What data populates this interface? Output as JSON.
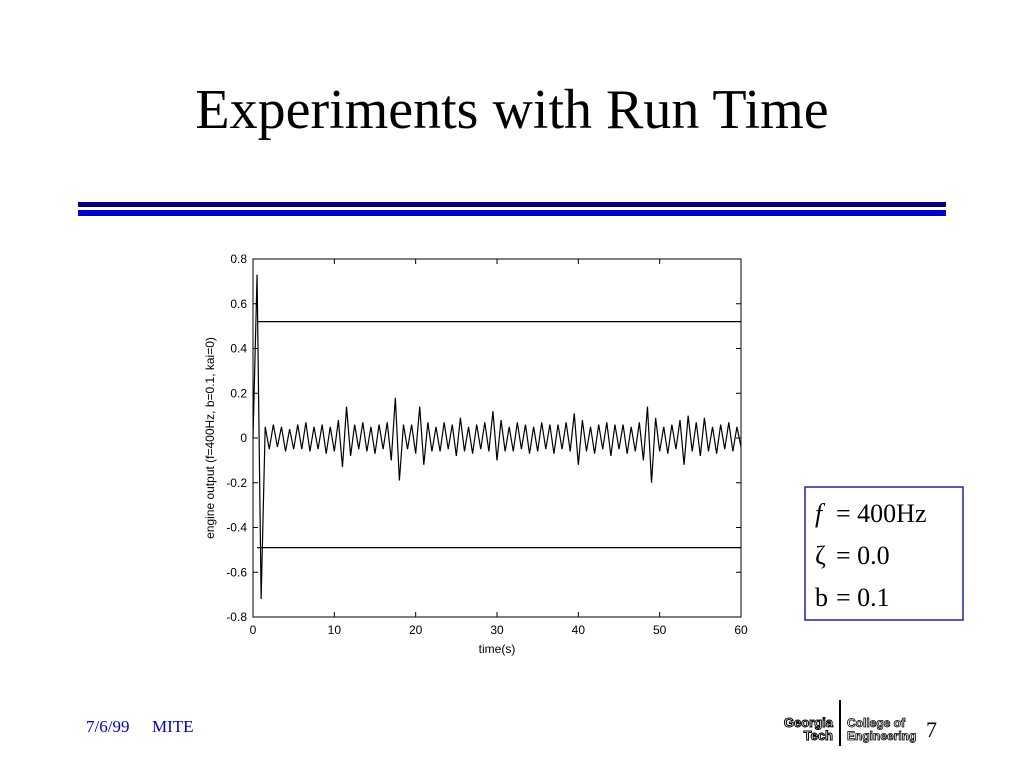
{
  "slide": {
    "title": "Experiments with Run Time",
    "date": "7/6/99",
    "event": "MITE",
    "page": "7",
    "logo": {
      "left": [
        "Georgia",
        "Tech"
      ],
      "right": [
        "College of",
        "Engineering"
      ]
    },
    "info_box": [
      {
        "var": "f",
        "rest": "= 400Hz"
      },
      {
        "var": "ζ",
        "rest": "= 0.0"
      },
      {
        "var": "b",
        "rest": "= 0.1"
      }
    ]
  },
  "chart_data": {
    "type": "line",
    "xlabel": "time(s)",
    "ylabel": "engine output (f=400Hz, b=0.1, kai=0)",
    "xlim": [
      0,
      60
    ],
    "ylim": [
      -0.8,
      0.8
    ],
    "xticks": [
      0,
      10,
      20,
      30,
      40,
      50,
      60
    ],
    "yticks": [
      -0.8,
      -0.6,
      -0.4,
      -0.2,
      0,
      0.2,
      0.4,
      0.6,
      0.8
    ],
    "grid": false,
    "series": [
      {
        "color": "#000000",
        "x": [
          0,
          0.5,
          1,
          1.5,
          2,
          2.5,
          3,
          3.5,
          4,
          4.5,
          5,
          5.5,
          6,
          6.5,
          7,
          7.5,
          8,
          8.5,
          9,
          9.5,
          10,
          10.5,
          11,
          11.5,
          12,
          12.5,
          13,
          13.5,
          14,
          14.5,
          15,
          15.5,
          16,
          16.5,
          17,
          17.5,
          18,
          18.5,
          19,
          19.5,
          20,
          20.5,
          21,
          21.5,
          22,
          22.5,
          23,
          23.5,
          24,
          24.5,
          25,
          25.5,
          26,
          26.5,
          27,
          27.5,
          28,
          28.5,
          29,
          29.5,
          30,
          30.5,
          31,
          31.5,
          32,
          32.5,
          33,
          33.5,
          34,
          34.5,
          35,
          35.5,
          36,
          36.5,
          37,
          37.5,
          38,
          38.5,
          39,
          39.5,
          40,
          40.5,
          41,
          41.5,
          42,
          42.5,
          43,
          43.5,
          44,
          44.5,
          45,
          45.5,
          46,
          46.5,
          47,
          47.5,
          48,
          48.5,
          49,
          49.5,
          50,
          50.5,
          51,
          51.5,
          52,
          52.5,
          53,
          53.5,
          54,
          54.5,
          55,
          55.5,
          56,
          56.5,
          57,
          57.5,
          58,
          58.5,
          59,
          59.5,
          60
        ],
        "values": [
          0,
          0.73,
          -0.72,
          0.05,
          -0.05,
          0.06,
          -0.04,
          0.05,
          -0.06,
          0.04,
          -0.05,
          0.06,
          -0.05,
          0.07,
          -0.06,
          0.05,
          -0.05,
          0.06,
          -0.07,
          0.05,
          -0.06,
          0.08,
          -0.13,
          0.14,
          -0.08,
          0.06,
          -0.05,
          0.07,
          -0.06,
          0.05,
          -0.07,
          0.06,
          -0.05,
          0.07,
          -0.1,
          0.18,
          -0.19,
          0.06,
          -0.05,
          0.06,
          -0.07,
          0.14,
          -0.12,
          0.07,
          -0.06,
          0.05,
          -0.06,
          0.07,
          -0.05,
          0.06,
          -0.08,
          0.09,
          -0.06,
          0.05,
          -0.07,
          0.06,
          -0.05,
          0.07,
          -0.06,
          0.12,
          -0.1,
          0.08,
          -0.06,
          0.05,
          -0.06,
          0.07,
          -0.05,
          0.06,
          -0.07,
          0.05,
          -0.06,
          0.07,
          -0.05,
          0.06,
          -0.07,
          0.06,
          -0.05,
          0.07,
          -0.06,
          0.11,
          -0.12,
          0.08,
          -0.06,
          0.05,
          -0.07,
          0.06,
          -0.05,
          0.07,
          -0.08,
          0.06,
          -0.05,
          0.06,
          -0.07,
          0.05,
          -0.06,
          0.07,
          -0.1,
          0.14,
          -0.2,
          0.09,
          -0.06,
          0.05,
          -0.07,
          0.06,
          -0.05,
          0.08,
          -0.12,
          0.1,
          -0.06,
          0.07,
          -0.08,
          0.09,
          -0.06,
          0.05,
          -0.07,
          0.06,
          -0.05,
          0.07,
          -0.06,
          0.05,
          -0.04
        ]
      },
      {
        "color": "#000000",
        "x": [
          0.5,
          60
        ],
        "values": [
          0.52,
          0.52
        ]
      },
      {
        "color": "#000000",
        "x": [
          0.5,
          60
        ],
        "values": [
          -0.49,
          -0.49
        ]
      }
    ]
  }
}
